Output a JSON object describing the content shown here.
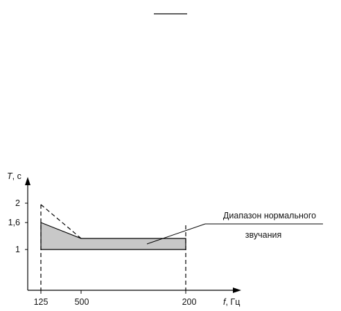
{
  "chart_data": {
    "type": "area",
    "title": "",
    "xlabel": {
      "symbol": "f",
      "unit": ", Гц"
    },
    "ylabel": {
      "symbol": "T",
      "unit": ", с"
    },
    "x_ticks": [
      "125",
      "500",
      "200"
    ],
    "y_ticks": [
      "2",
      "1,6",
      "1"
    ],
    "series": [
      {
        "style": "dashed",
        "points": [
          {
            "x": "125",
            "y": 2
          },
          {
            "x": "500",
            "y": 1.3
          }
        ]
      },
      {
        "style": "shaded-band",
        "upper": [
          {
            "x": "125",
            "y": 1.6
          },
          {
            "x": "500",
            "y": 1.3
          },
          {
            "x": "200",
            "y": 1.3
          }
        ],
        "lower": [
          {
            "x": "125",
            "y": 1
          },
          {
            "x": "200",
            "y": 1
          }
        ]
      }
    ],
    "annotation": {
      "line1": "Диапазон нормального",
      "line2": "звучания"
    },
    "colors": {
      "band_fill": "#c8c8c8",
      "line": "#000000"
    }
  },
  "top_mark": {
    "present": true
  }
}
